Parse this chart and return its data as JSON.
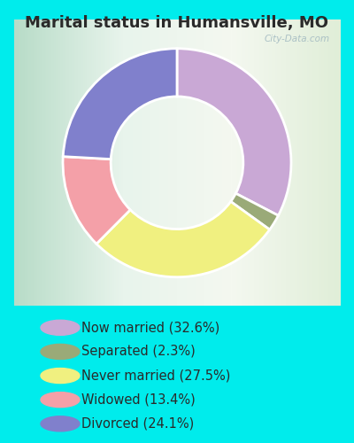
{
  "title": "Marital status in Humansville, MO",
  "title_color": "#2a2a2a",
  "title_fontsize": 13,
  "bg_cyan": "#00ECEC",
  "bg_chart": "#cce8d8",
  "watermark": "City-Data.com",
  "categories": [
    "Now married",
    "Separated",
    "Never married",
    "Widowed",
    "Divorced"
  ],
  "percentages": [
    32.6,
    2.3,
    27.5,
    13.4,
    24.1
  ],
  "colors": [
    "#c9a8d5",
    "#9aaa78",
    "#f0f080",
    "#f4a0a8",
    "#8080cc"
  ],
  "legend_labels": [
    "Now married (32.6%)",
    "Separated (2.3%)",
    "Never married (27.5%)",
    "Widowed (13.4%)",
    "Divorced (24.1%)"
  ],
  "figsize": [
    4.0,
    5.0
  ],
  "dpi": 100
}
